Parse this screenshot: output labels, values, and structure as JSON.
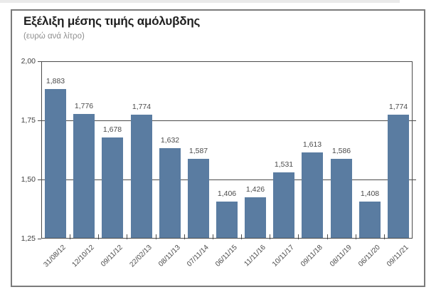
{
  "figure": {
    "title": "Εξέλιξη μέσης τιμής αμόλυβδης",
    "subtitle": "(ευρώ ανά λίτρο)"
  },
  "chart_data": {
    "type": "bar",
    "title": "Εξέλιξη μέσης τιμής αμόλυβδης",
    "subtitle": "(ευρώ ανά λίτρο)",
    "unit": "ευρώ ανά λίτρο",
    "categories": [
      "31/08/12",
      "12/10/12",
      "09/11/12",
      "22/02/13",
      "08/11/13",
      "07/11/14",
      "06/11/15",
      "11/11/16",
      "10/11/17",
      "09/11/18",
      "08/11/19",
      "06/11/20",
      "09/11/21"
    ],
    "values": [
      1.883,
      1.776,
      1.678,
      1.774,
      1.632,
      1.587,
      1.406,
      1.426,
      1.531,
      1.613,
      1.586,
      1.408,
      1.774
    ],
    "value_labels": [
      "1,883",
      "1,776",
      "1,678",
      "1,774",
      "1,632",
      "1,587",
      "1,406",
      "1,426",
      "1,531",
      "1,613",
      "1,586",
      "1,408",
      "1,774"
    ],
    "xlabel": "",
    "ylabel": "",
    "ylim": [
      1.25,
      2.0
    ],
    "yticks": [
      {
        "value": 2.0,
        "label": "2,00"
      },
      {
        "value": 1.75,
        "label": "1,75"
      },
      {
        "value": 1.5,
        "label": "1,50"
      },
      {
        "value": 1.25,
        "label": "1,25"
      }
    ],
    "grid": "horizontal",
    "legend": null,
    "colors": {
      "bar": "#5a7ca1",
      "axis": "#4b4b4b",
      "grid": "#4b4b4b",
      "title": "#1f1f1f",
      "subtitle": "#8e8e8e",
      "labels": "#4a4a4a",
      "frame_border": "#7b7b7b"
    }
  }
}
